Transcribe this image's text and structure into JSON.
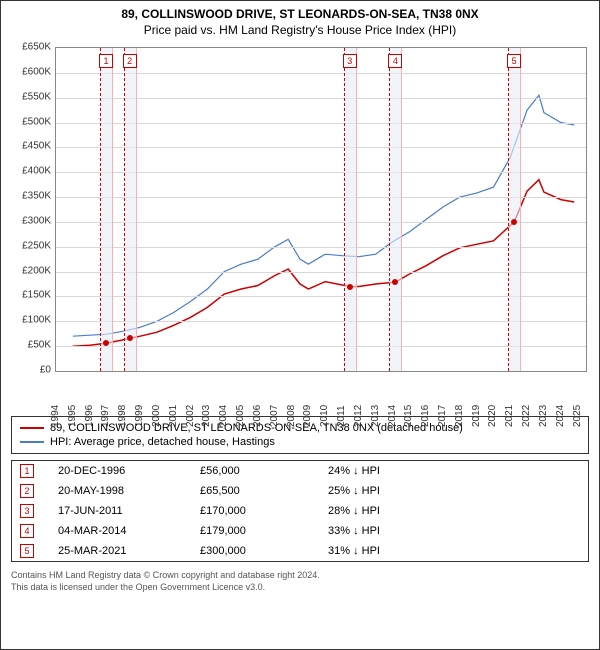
{
  "title_line1": "89, COLLINSWOOD DRIVE, ST LEONARDS-ON-SEA, TN38 0NX",
  "title_line2": "Price paid vs. HM Land Registry's House Price Index (HPI)",
  "chart": {
    "type": "line",
    "x_domain": [
      1994,
      2025.5
    ],
    "y_domain": [
      0,
      650000
    ],
    "y_ticks": [
      0,
      50000,
      100000,
      150000,
      200000,
      250000,
      300000,
      350000,
      400000,
      450000,
      500000,
      550000,
      600000,
      650000
    ],
    "y_tick_labels": [
      "£0",
      "£50K",
      "£100K",
      "£150K",
      "£200K",
      "£250K",
      "£300K",
      "£350K",
      "£400K",
      "£450K",
      "£500K",
      "£550K",
      "£600K",
      "£650K"
    ],
    "x_ticks": [
      1994,
      1995,
      1996,
      1997,
      1998,
      1999,
      2000,
      2001,
      2002,
      2003,
      2004,
      2005,
      2006,
      2007,
      2008,
      2009,
      2010,
      2011,
      2012,
      2013,
      2014,
      2015,
      2016,
      2017,
      2018,
      2019,
      2020,
      2021,
      2022,
      2023,
      2024,
      2025
    ],
    "grid_color": "#d8d8d8",
    "background_color": "#ffffff",
    "series": [
      {
        "name": "hpi",
        "color": "#4a7dc9",
        "width": 1.2,
        "points": [
          [
            1995,
            70000
          ],
          [
            1996,
            72000
          ],
          [
            1997,
            74000
          ],
          [
            1998,
            80000
          ],
          [
            1999,
            88000
          ],
          [
            2000,
            100000
          ],
          [
            2001,
            118000
          ],
          [
            2002,
            140000
          ],
          [
            2003,
            165000
          ],
          [
            2004,
            200000
          ],
          [
            2005,
            215000
          ],
          [
            2006,
            225000
          ],
          [
            2007,
            250000
          ],
          [
            2007.8,
            265000
          ],
          [
            2008.5,
            225000
          ],
          [
            2009,
            215000
          ],
          [
            2010,
            235000
          ],
          [
            2011,
            232000
          ],
          [
            2012,
            230000
          ],
          [
            2013,
            235000
          ],
          [
            2014,
            260000
          ],
          [
            2015,
            280000
          ],
          [
            2016,
            305000
          ],
          [
            2017,
            330000
          ],
          [
            2018,
            350000
          ],
          [
            2019,
            358000
          ],
          [
            2020,
            370000
          ],
          [
            2021,
            430000
          ],
          [
            2022,
            525000
          ],
          [
            2022.7,
            555000
          ],
          [
            2023,
            520000
          ],
          [
            2024,
            500000
          ],
          [
            2024.8,
            495000
          ]
        ]
      },
      {
        "name": "property",
        "color": "#cc0000",
        "width": 1.5,
        "points": [
          [
            1995,
            50000
          ],
          [
            1996,
            52000
          ],
          [
            1996.97,
            56000
          ],
          [
            1998.38,
            65500
          ],
          [
            1999,
            70000
          ],
          [
            2000,
            78000
          ],
          [
            2001,
            92000
          ],
          [
            2002,
            108000
          ],
          [
            2003,
            128000
          ],
          [
            2004,
            155000
          ],
          [
            2005,
            165000
          ],
          [
            2006,
            172000
          ],
          [
            2007,
            192000
          ],
          [
            2007.8,
            205000
          ],
          [
            2008.5,
            175000
          ],
          [
            2009,
            165000
          ],
          [
            2010,
            180000
          ],
          [
            2011.46,
            170000
          ],
          [
            2012,
            170000
          ],
          [
            2013,
            175000
          ],
          [
            2014.17,
            179000
          ],
          [
            2015,
            195000
          ],
          [
            2016,
            212000
          ],
          [
            2017,
            232000
          ],
          [
            2018,
            248000
          ],
          [
            2019,
            255000
          ],
          [
            2020,
            262000
          ],
          [
            2021.23,
            300000
          ],
          [
            2022,
            362000
          ],
          [
            2022.7,
            385000
          ],
          [
            2023,
            360000
          ],
          [
            2024,
            345000
          ],
          [
            2024.8,
            340000
          ]
        ]
      }
    ],
    "event_markers": [
      {
        "n": 1,
        "x": 1996.97,
        "y": 56000
      },
      {
        "n": 2,
        "x": 1998.38,
        "y": 65500
      },
      {
        "n": 3,
        "x": 2011.46,
        "y": 170000
      },
      {
        "n": 4,
        "x": 2014.17,
        "y": 179000
      },
      {
        "n": 5,
        "x": 2021.23,
        "y": 300000
      }
    ],
    "marker_box_color": "#cc0000",
    "band_color": "#e8eef7"
  },
  "legend": {
    "series1": {
      "label": "89, COLLINSWOOD DRIVE, ST LEONARDS-ON-SEA, TN38 0NX (detached house)",
      "color": "#cc0000"
    },
    "series2": {
      "label": "HPI: Average price, detached house, Hastings",
      "color": "#4a7dc9"
    }
  },
  "events": [
    {
      "n": "1",
      "date": "20-DEC-1996",
      "price": "£56,000",
      "pct": "24% ↓ HPI"
    },
    {
      "n": "2",
      "date": "20-MAY-1998",
      "price": "£65,500",
      "pct": "25% ↓ HPI"
    },
    {
      "n": "3",
      "date": "17-JUN-2011",
      "price": "£170,000",
      "pct": "28% ↓ HPI"
    },
    {
      "n": "4",
      "date": "04-MAR-2014",
      "price": "£179,000",
      "pct": "33% ↓ HPI"
    },
    {
      "n": "5",
      "date": "25-MAR-2021",
      "price": "£300,000",
      "pct": "31% ↓ HPI"
    }
  ],
  "footer_line1": "Contains HM Land Registry data © Crown copyright and database right 2024.",
  "footer_line2": "This data is licensed under the Open Government Licence v3.0."
}
